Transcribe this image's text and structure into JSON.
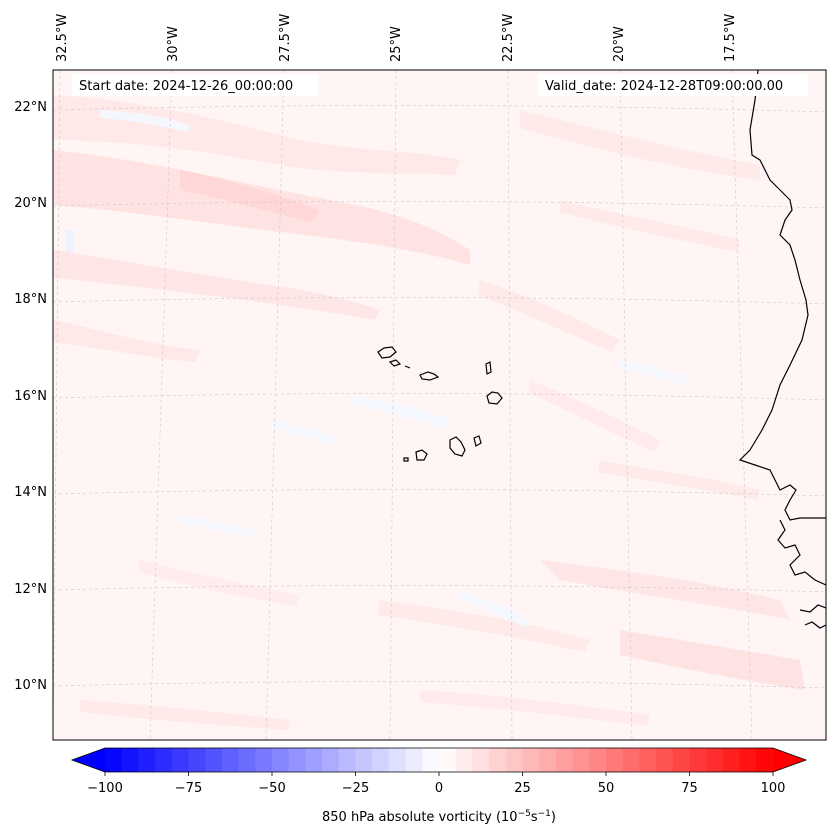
{
  "map": {
    "start_date": "Start date: 2024-12-26_00:00:00",
    "valid_date": "Valid_date: 2024-12-28T09:00:00.00",
    "lon_labels": [
      "32.5°W",
      "30°W",
      "27.5°W",
      "25°W",
      "22.5°W",
      "20°W",
      "17.5°W"
    ],
    "lat_labels": [
      "22°N",
      "20°N",
      "18°N",
      "16°N",
      "14°N",
      "12°N",
      "10°N"
    ],
    "field": "850 hPa absolute vorticity",
    "colormap": "bwr",
    "gridlines": true
  },
  "colorbar": {
    "label": "850 hPa absolute vorticity (10",
    "label_exp": "−5",
    "label_unit": "s",
    "label_exp2": "−1",
    "label_close": ")",
    "ticks": [
      "−100",
      "−75",
      "−50",
      "−25",
      "0",
      "25",
      "50",
      "75",
      "100"
    ],
    "range": [
      -100,
      100
    ],
    "levels": 41,
    "extend": "both",
    "low_color": "#0000ff",
    "mid_color": "#ffffff",
    "high_color": "#ff0000"
  }
}
